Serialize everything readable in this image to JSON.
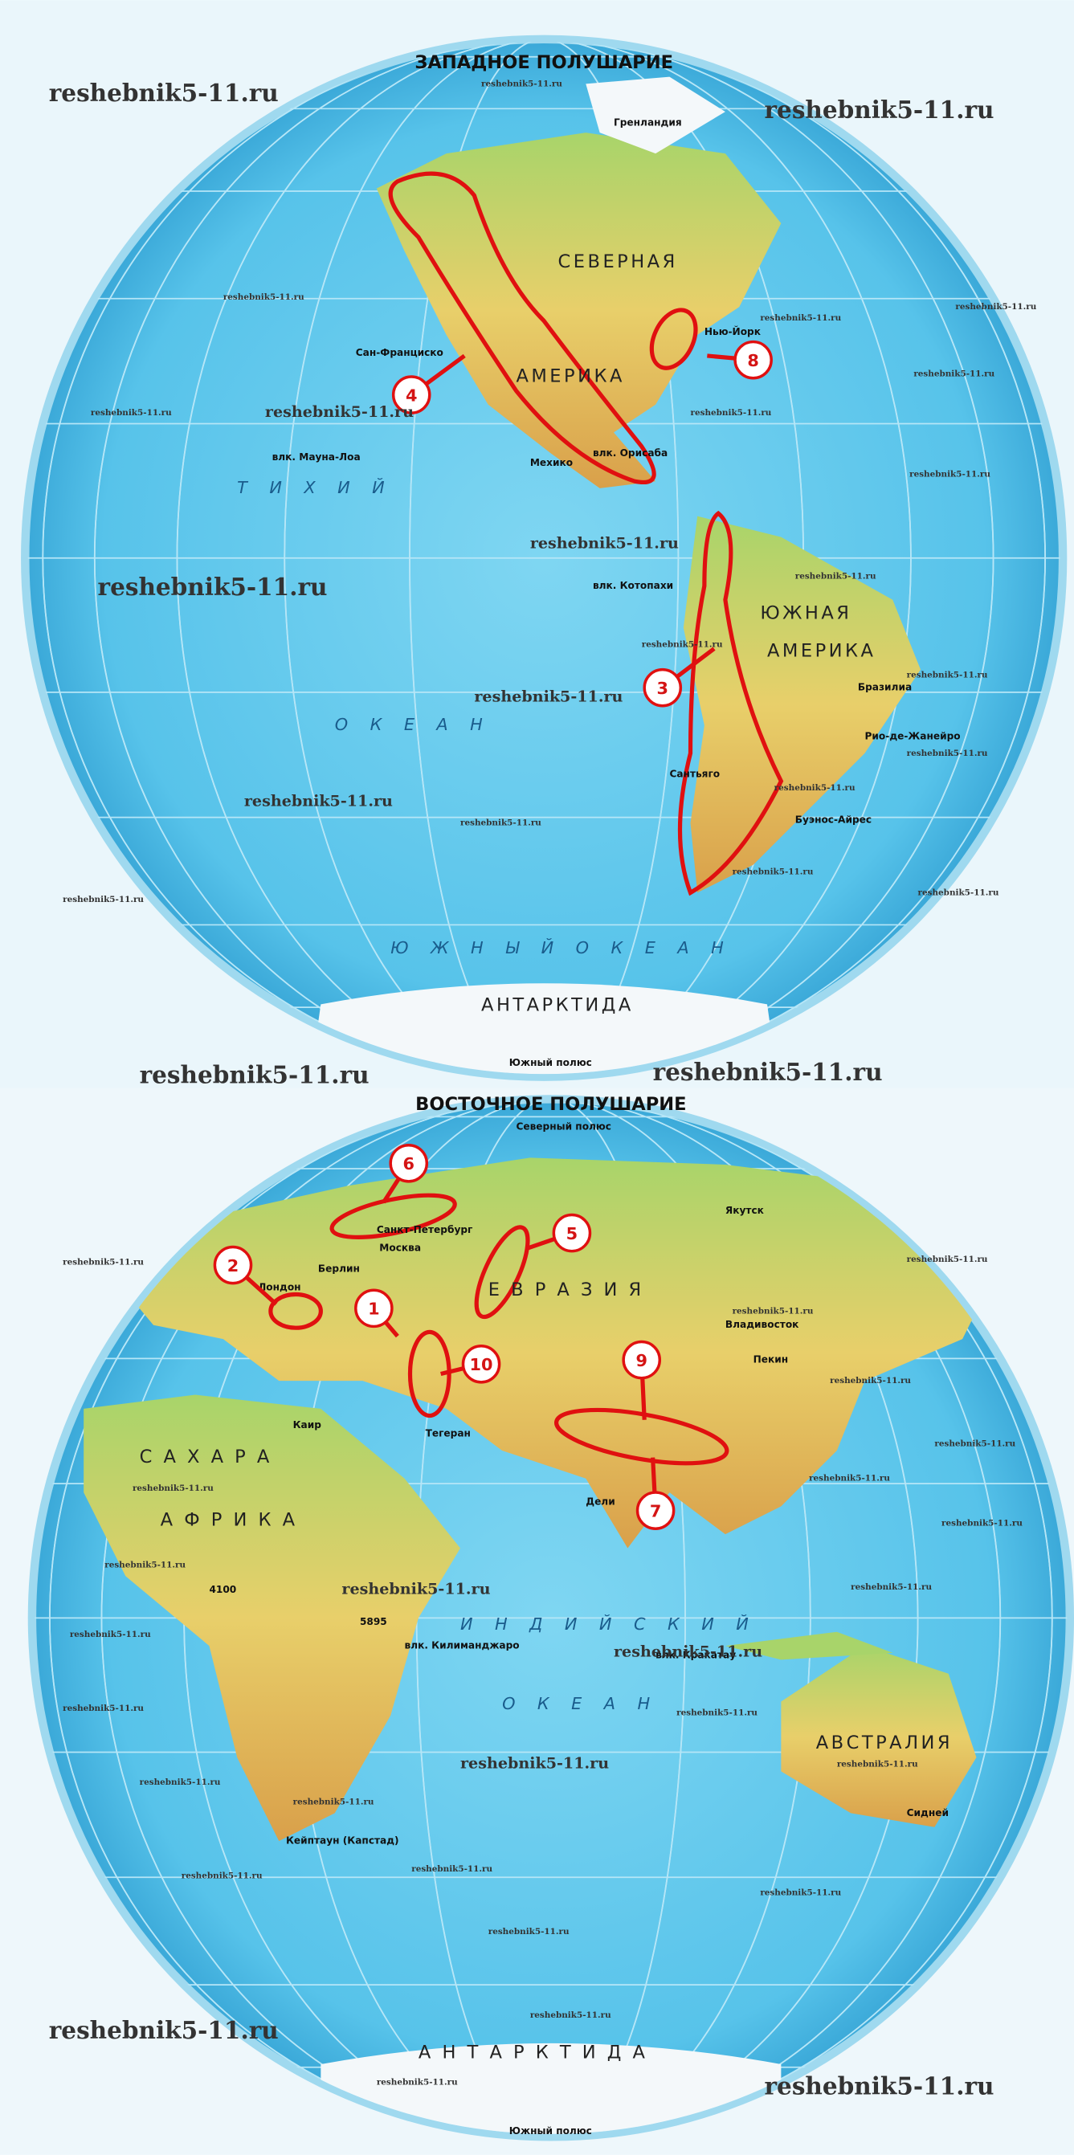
{
  "watermark": "reshebnik5-11.ru",
  "western_hemisphere": {
    "title": "ЗАПАДНОЕ ПОЛУШАРИЕ",
    "continents": [
      "СЕВЕРНАЯ",
      "АМЕРИКА",
      "ЮЖНАЯ",
      "АМЕРИКА"
    ],
    "oceans": [
      "Т И Х И Й",
      "О К Е А Н",
      "Ю Ж Н Ы Й   О К Е А Н"
    ],
    "places": [
      "Сан-Франциско",
      "Нью-Йорк",
      "Мехико",
      "влк. Орисаба",
      "влк. Котопахи",
      "Бразилиа",
      "Рио-де-Жанейро",
      "Сантьяго",
      "Буэнос-Айрес",
      "влк. Мауна-Лоа",
      "Гренландия"
    ],
    "antarctica": "АНТАРКТИДА",
    "pole": "Южный полюс",
    "markers": [
      "4",
      "8",
      "3"
    ]
  },
  "eastern_hemisphere": {
    "title": "ВОСТОЧНОЕ ПОЛУШАРИЕ",
    "north_pole": "Северный полюс",
    "continents": [
      "Е В Р А З И Я",
      "С А Х А Р А",
      "А Ф Р И К А",
      "АВСТРАЛИЯ"
    ],
    "oceans": [
      "И Н Д И Й С К И Й",
      "О К Е А Н"
    ],
    "places": [
      "Санкт-Петербург",
      "Москва",
      "Берлин",
      "Лондон",
      "Якутск",
      "Владивосток",
      "Пекин",
      "Тегеран",
      "Каир",
      "Дели",
      "Сидней",
      "Кейптаун (Капстад)",
      "влк. Килиманджаро",
      "влк. Кракатау",
      "4100",
      "5895"
    ],
    "antarctica": "А Н Т А Р К Т И Д А",
    "pole": "Южный полюс",
    "markers": [
      "6",
      "5",
      "2",
      "1",
      "10",
      "9",
      "7"
    ]
  }
}
